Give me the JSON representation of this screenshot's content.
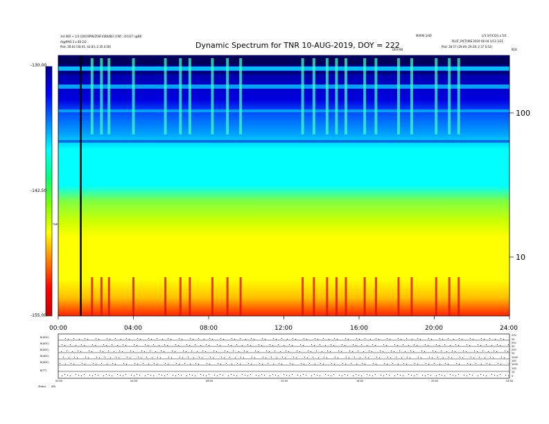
{
  "header": {
    "left_line1": "1st 000 + 1/3 (200 BPW/256F)/(80/80) (CW) ; 4/1/27 (@BK",
    "left_line2": "AI@PM3 2 x 80 2/2",
    "left_line3": "Plot:   28.83 (28.41, 42.83, 2.35 0.58)",
    "right_line1": "M/090 2/40",
    "right_line2": "L/3 3/7/C0/1 x 5/1",
    "right_line3": "PLOT_PICTURE 2019 08 04 1/C3 1/21",
    "right_line4": "Plot:   28.57 (29.09, 29.28, 2.37 0.52)",
    "mid_small": "DEV/AB",
    "corner_small": "818"
  },
  "chart_data": {
    "type": "heatmap",
    "title": "Dynamic Spectrum for TNR 10-AUG-2019, DOY = 222",
    "x_ticks": [
      "00:00",
      "04:00",
      "08:00",
      "12:00",
      "16:00",
      "20:00",
      "24:00"
    ],
    "y_ticks_right": [
      "100",
      "10"
    ],
    "colorbar_ticks": [
      "-130.00",
      "-142.50",
      "-155.00"
    ],
    "colorbar_label": "TNR",
    "colorbar_range": [
      -155.0,
      -130.0
    ],
    "colormap": [
      "#c80000",
      "#ff0000",
      "#ff8000",
      "#ffff00",
      "#80ff00",
      "#00ff80",
      "#00ffff",
      "#0080ff",
      "#0000ff",
      "#00008b"
    ],
    "x_range_hours": [
      0,
      24
    ],
    "marker_line_hour": 1.2,
    "bursts_hours": [
      1.8,
      2.3,
      2.7,
      4.0,
      5.7,
      6.5,
      7.0,
      8.2,
      9.0,
      9.7,
      13.0,
      13.6,
      14.3,
      14.8,
      15.3,
      16.3,
      16.9,
      18.1,
      18.8,
      20.1,
      20.8,
      21.3
    ]
  },
  "bottom_panels": {
    "labels": [
      "B(ADC)",
      "B(ADC)",
      "B(ADC)",
      "B(ADC)",
      "B(ADC)",
      "B(TT)"
    ],
    "right_ticks": [
      "250",
      "50",
      "250",
      "50",
      "250",
      "50",
      "1000",
      "100",
      "1000",
      "100",
      "10",
      "0"
    ],
    "x_ticks": [
      "00:00",
      "04:00",
      "08:00",
      "12:00",
      "16:00",
      "20:00",
      "24:00"
    ],
    "footer_left": "Status",
    "footer_value": "ADJ"
  }
}
